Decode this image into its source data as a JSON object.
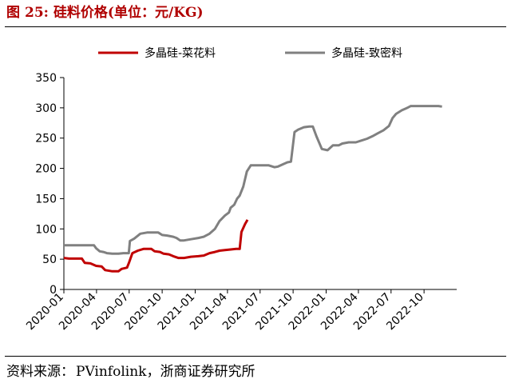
{
  "header": {
    "figure_prefix": "图",
    "figure_number": "25:",
    "title": "硅料价格(单位：元/KG)"
  },
  "footer": {
    "source_prefix": "资料来源：",
    "source_text": "PVinfolink，浙商证券研究所"
  },
  "chart_data": {
    "type": "line",
    "title": "硅料价格(单位：元/KG)",
    "xlabel": "",
    "ylabel": "",
    "ylim": [
      0,
      350
    ],
    "yticks": [
      "0",
      "50",
      "100",
      "150",
      "200",
      "250",
      "300",
      "350"
    ],
    "xlim": [
      "2020-01-01",
      "2022-12-31"
    ],
    "xticks": [
      "2020-01",
      "2020-04",
      "2020-07",
      "2020-10",
      "2021-01",
      "2021-04",
      "2021-07",
      "2021-10",
      "2022-01",
      "2022-04",
      "2022-07",
      "2022-10"
    ],
    "grid": false,
    "legend_position": "top",
    "series": [
      {
        "name": "多晶硅-菜花料",
        "color": "#c00000",
        "points": [
          [
            "2020-01-01",
            52
          ],
          [
            "2020-01-15",
            51
          ],
          [
            "2020-02-20",
            51
          ],
          [
            "2020-02-28",
            44
          ],
          [
            "2020-03-15",
            43
          ],
          [
            "2020-03-31",
            39
          ],
          [
            "2020-04-15",
            38
          ],
          [
            "2020-04-25",
            32
          ],
          [
            "2020-05-15",
            30
          ],
          [
            "2020-06-01",
            30
          ],
          [
            "2020-06-10",
            34
          ],
          [
            "2020-06-25",
            36
          ],
          [
            "2020-07-01",
            45
          ],
          [
            "2020-07-10",
            60
          ],
          [
            "2020-07-25",
            64
          ],
          [
            "2020-08-10",
            67
          ],
          [
            "2020-09-01",
            67
          ],
          [
            "2020-09-10",
            63
          ],
          [
            "2020-09-25",
            62
          ],
          [
            "2020-10-05",
            59
          ],
          [
            "2020-10-20",
            58
          ],
          [
            "2020-11-01",
            55
          ],
          [
            "2020-11-15",
            52
          ],
          [
            "2020-12-01",
            52
          ],
          [
            "2020-12-20",
            54
          ],
          [
            "2021-01-10",
            55
          ],
          [
            "2021-01-25",
            56
          ],
          [
            "2021-02-10",
            60
          ],
          [
            "2021-02-25",
            62
          ],
          [
            "2021-03-10",
            64
          ],
          [
            "2021-03-25",
            65
          ],
          [
            "2021-04-10",
            66
          ],
          [
            "2021-04-25",
            67
          ],
          [
            "2021-05-05",
            67
          ],
          [
            "2021-05-10",
            95
          ],
          [
            "2021-05-20",
            108
          ],
          [
            "2021-05-27",
            115
          ]
        ]
      },
      {
        "name": "多晶硅-致密料",
        "color": "#808080",
        "points": [
          [
            "2020-01-01",
            73
          ],
          [
            "2020-01-15",
            73
          ],
          [
            "2020-02-20",
            73
          ],
          [
            "2020-03-15",
            73
          ],
          [
            "2020-03-25",
            73
          ],
          [
            "2020-03-31",
            68
          ],
          [
            "2020-04-10",
            63
          ],
          [
            "2020-04-20",
            62
          ],
          [
            "2020-04-30",
            60
          ],
          [
            "2020-05-15",
            59
          ],
          [
            "2020-06-01",
            59
          ],
          [
            "2020-06-15",
            60
          ],
          [
            "2020-06-30",
            60
          ],
          [
            "2020-07-03",
            80
          ],
          [
            "2020-07-15",
            84
          ],
          [
            "2020-08-01",
            92
          ],
          [
            "2020-08-20",
            94
          ],
          [
            "2020-09-05",
            94
          ],
          [
            "2020-09-20",
            94
          ],
          [
            "2020-10-01",
            90
          ],
          [
            "2020-10-15",
            89
          ],
          [
            "2020-11-01",
            87
          ],
          [
            "2020-11-10",
            85
          ],
          [
            "2020-11-20",
            81
          ],
          [
            "2020-12-01",
            81
          ],
          [
            "2020-12-20",
            83
          ],
          [
            "2021-01-10",
            85
          ],
          [
            "2021-01-25",
            87
          ],
          [
            "2021-02-10",
            92
          ],
          [
            "2021-02-25",
            100
          ],
          [
            "2021-03-10",
            113
          ],
          [
            "2021-03-25",
            122
          ],
          [
            "2021-04-05",
            127
          ],
          [
            "2021-04-10",
            135
          ],
          [
            "2021-04-20",
            140
          ],
          [
            "2021-04-28",
            150
          ],
          [
            "2021-05-05",
            155
          ],
          [
            "2021-05-15",
            170
          ],
          [
            "2021-05-25",
            195
          ],
          [
            "2021-06-05",
            205
          ],
          [
            "2021-06-20",
            205
          ],
          [
            "2021-07-10",
            205
          ],
          [
            "2021-07-25",
            205
          ],
          [
            "2021-08-10",
            202
          ],
          [
            "2021-08-20",
            203
          ],
          [
            "2021-08-31",
            206
          ],
          [
            "2021-09-15",
            210
          ],
          [
            "2021-09-25",
            211
          ],
          [
            "2021-10-05",
            260
          ],
          [
            "2021-10-15",
            264
          ],
          [
            "2021-10-31",
            268
          ],
          [
            "2021-11-15",
            269
          ],
          [
            "2021-11-25",
            269
          ],
          [
            "2021-12-05",
            253
          ],
          [
            "2021-12-20",
            232
          ],
          [
            "2022-01-05",
            230
          ],
          [
            "2022-01-20",
            238
          ],
          [
            "2022-02-05",
            238
          ],
          [
            "2022-02-15",
            241
          ],
          [
            "2022-03-05",
            243
          ],
          [
            "2022-03-25",
            243
          ],
          [
            "2022-04-10",
            246
          ],
          [
            "2022-04-25",
            249
          ],
          [
            "2022-05-10",
            253
          ],
          [
            "2022-05-25",
            258
          ],
          [
            "2022-06-10",
            263
          ],
          [
            "2022-06-25",
            270
          ],
          [
            "2022-07-05",
            283
          ],
          [
            "2022-07-15",
            290
          ],
          [
            "2022-07-31",
            296
          ],
          [
            "2022-08-15",
            300
          ],
          [
            "2022-08-25",
            303
          ],
          [
            "2022-09-10",
            303
          ],
          [
            "2022-09-30",
            303
          ],
          [
            "2022-10-20",
            303
          ],
          [
            "2022-11-10",
            303
          ],
          [
            "2022-11-20",
            302
          ]
        ]
      }
    ]
  }
}
